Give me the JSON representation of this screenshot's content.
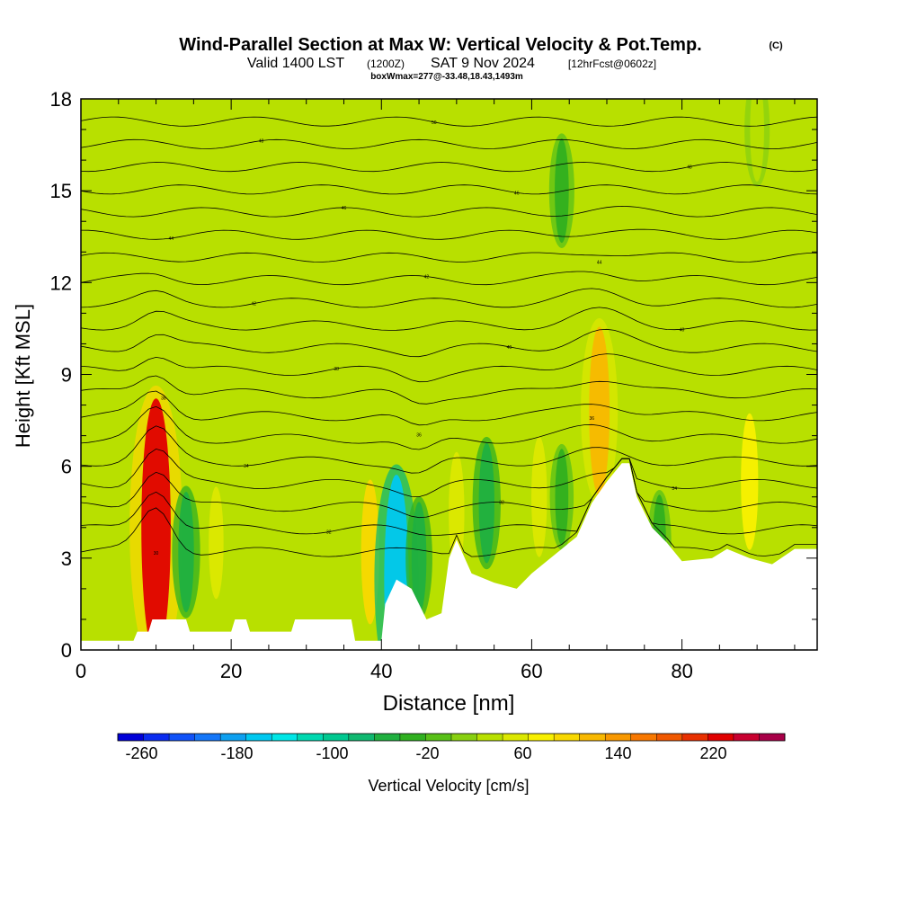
{
  "chart_data": {
    "type": "heatmap",
    "title": "Wind-Parallel Section at Max W: Vertical Velocity & Pot.Temp.",
    "title_mark": "(C)",
    "subtitle_valid": "Valid 1400 LST",
    "subtitle_utc": "(1200Z)",
    "subtitle_date": "SAT 9 Nov 2024",
    "subtitle_fcst": "[12hrFcst@0602z]",
    "subtitle_box": "boxWmax=277@-33.48,18.43,1493m",
    "xlabel": "Distance [nm]",
    "ylabel": "Height [Kft MSL]",
    "xlim": [
      0,
      98
    ],
    "ylim": [
      0,
      18
    ],
    "x_ticks": [
      "0",
      "20",
      "40",
      "60",
      "80"
    ],
    "y_ticks": [
      "0",
      "3",
      "6",
      "9",
      "12",
      "15",
      "18"
    ],
    "colorbar": {
      "label": "Vertical Velocity [cm/s]",
      "tick_labels": [
        "-260",
        "-180",
        "-100",
        "-20",
        "60",
        "140",
        "220"
      ],
      "range": [
        -280,
        280
      ],
      "colors": [
        "#0000d8",
        "#0a2cf0",
        "#1052f8",
        "#1476f8",
        "#0ea0f0",
        "#00c8f0",
        "#00e6e6",
        "#00d8b0",
        "#00c890",
        "#10b870",
        "#20b040",
        "#30b020",
        "#58c018",
        "#88d010",
        "#b8e000",
        "#dce800",
        "#f8f000",
        "#f8d800",
        "#f8b800",
        "#f89800",
        "#f87800",
        "#f05800",
        "#e83000",
        "#e00000",
        "#c80030",
        "#a80048"
      ]
    },
    "grid": false,
    "terrain_heights_kft": [
      [
        0,
        0.3
      ],
      [
        3,
        0.3
      ],
      [
        7,
        0.3
      ],
      [
        7.5,
        0.6
      ],
      [
        9,
        0.6
      ],
      [
        9.5,
        1.0
      ],
      [
        14,
        1.0
      ],
      [
        14.5,
        0.6
      ],
      [
        20,
        0.6
      ],
      [
        20.5,
        1.0
      ],
      [
        22,
        1.0
      ],
      [
        22.5,
        0.6
      ],
      [
        28,
        0.6
      ],
      [
        28.5,
        1.0
      ],
      [
        36,
        1.0
      ],
      [
        36.5,
        0.3
      ],
      [
        40,
        0.3
      ],
      [
        40.5,
        1.5
      ],
      [
        42,
        2.3
      ],
      [
        44,
        2.0
      ],
      [
        46,
        1.0
      ],
      [
        48,
        1.2
      ],
      [
        49,
        3.0
      ],
      [
        50,
        3.6
      ],
      [
        52,
        2.5
      ],
      [
        55,
        2.2
      ],
      [
        58,
        2.0
      ],
      [
        60,
        2.5
      ],
      [
        62,
        2.9
      ],
      [
        64,
        3.3
      ],
      [
        66,
        3.7
      ],
      [
        68,
        4.8
      ],
      [
        70,
        5.5
      ],
      [
        72,
        6.1
      ],
      [
        73,
        6.1
      ],
      [
        74,
        5.0
      ],
      [
        76,
        4.0
      ],
      [
        78,
        3.5
      ],
      [
        80,
        2.9
      ],
      [
        84,
        3.0
      ],
      [
        86,
        3.3
      ],
      [
        89,
        3.0
      ],
      [
        92,
        2.8
      ],
      [
        95,
        3.3
      ],
      [
        98,
        3.3
      ]
    ],
    "w_features": [
      {
        "x": 10,
        "y": 4.0,
        "w": 230
      },
      {
        "x": 14,
        "y": 3.2,
        "w": -60
      },
      {
        "x": 18,
        "y": 3.5,
        "w": 50
      },
      {
        "x": 38.5,
        "y": 3.2,
        "w": 90
      },
      {
        "x": 42,
        "y": 2.3,
        "w": -170
      },
      {
        "x": 45,
        "y": 3.0,
        "w": -50
      },
      {
        "x": 50,
        "y": 4.5,
        "w": 60
      },
      {
        "x": 54,
        "y": 4.8,
        "w": -60
      },
      {
        "x": 61,
        "y": 5.0,
        "w": 60
      },
      {
        "x": 64,
        "y": 5.0,
        "w": -30
      },
      {
        "x": 69,
        "y": 7.8,
        "w": 120
      },
      {
        "x": 89,
        "y": 5.5,
        "w": 80
      },
      {
        "x": 77,
        "y": 3.5,
        "w": -30
      },
      {
        "x": 90,
        "y": 17.0,
        "w": 40
      },
      {
        "x": 64,
        "y": 15.0,
        "w": -40
      }
    ],
    "theta_contour_labels": [
      "30",
      "32",
      "32",
      "34",
      "34",
      "36",
      "36",
      "38",
      "38",
      "40",
      "40",
      "42",
      "42",
      "44",
      "44",
      "46",
      "46",
      "48",
      "48",
      "50"
    ]
  }
}
